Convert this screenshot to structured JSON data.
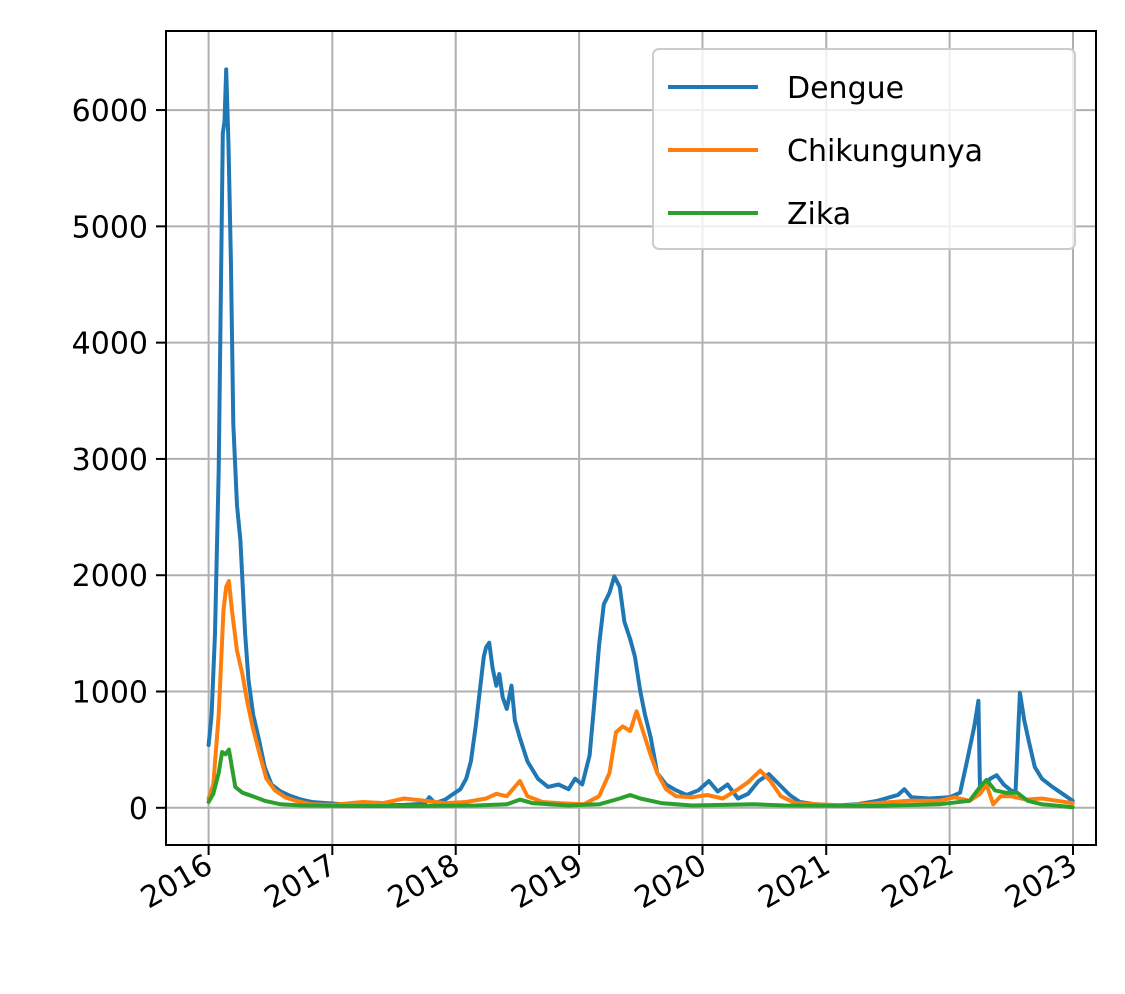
{
  "chart_data": {
    "type": "line",
    "title": "",
    "xlabel": "",
    "ylabel": "",
    "x_ticks": [
      "2016",
      "2017",
      "2018",
      "2019",
      "2020",
      "2021",
      "2022",
      "2023"
    ],
    "y_ticks": [
      0,
      1000,
      2000,
      3000,
      4000,
      5000,
      6000
    ],
    "xlim": [
      "2015-08-28",
      "2023-03-10"
    ],
    "ylim": [
      -320,
      6680
    ],
    "grid": true,
    "legend_position": "top-right",
    "series": [
      {
        "name": "Dengue",
        "color": "#1f77b4",
        "points": [
          [
            "2016-01-01",
            540
          ],
          [
            "2016-01-10",
            800
          ],
          [
            "2016-01-20",
            1500
          ],
          [
            "2016-01-31",
            2900
          ],
          [
            "2016-02-07",
            4600
          ],
          [
            "2016-02-12",
            5800
          ],
          [
            "2016-02-17",
            5900
          ],
          [
            "2016-02-22",
            6350
          ],
          [
            "2016-02-29",
            5700
          ],
          [
            "2016-03-07",
            4700
          ],
          [
            "2016-03-14",
            3300
          ],
          [
            "2016-03-25",
            2600
          ],
          [
            "2016-04-04",
            2300
          ],
          [
            "2016-04-18",
            1500
          ],
          [
            "2016-04-28",
            1100
          ],
          [
            "2016-05-12",
            800
          ],
          [
            "2016-05-28",
            600
          ],
          [
            "2016-06-15",
            350
          ],
          [
            "2016-07-05",
            200
          ],
          [
            "2016-08-01",
            140
          ],
          [
            "2016-09-01",
            100
          ],
          [
            "2016-10-01",
            70
          ],
          [
            "2016-11-01",
            50
          ],
          [
            "2016-12-15",
            40
          ],
          [
            "2017-02-01",
            30
          ],
          [
            "2017-05-01",
            20
          ],
          [
            "2017-08-01",
            25
          ],
          [
            "2017-10-01",
            35
          ],
          [
            "2017-10-15",
            90
          ],
          [
            "2017-11-01",
            40
          ],
          [
            "2017-12-01",
            70
          ],
          [
            "2017-12-20",
            110
          ],
          [
            "2018-01-15",
            160
          ],
          [
            "2018-02-01",
            250
          ],
          [
            "2018-02-15",
            400
          ],
          [
            "2018-03-01",
            700
          ],
          [
            "2018-03-15",
            1050
          ],
          [
            "2018-03-25",
            1300
          ],
          [
            "2018-04-01",
            1380
          ],
          [
            "2018-04-10",
            1420
          ],
          [
            "2018-04-20",
            1200
          ],
          [
            "2018-05-01",
            1050
          ],
          [
            "2018-05-10",
            1150
          ],
          [
            "2018-05-20",
            950
          ],
          [
            "2018-06-01",
            850
          ],
          [
            "2018-06-15",
            1050
          ],
          [
            "2018-06-25",
            750
          ],
          [
            "2018-07-10",
            600
          ],
          [
            "2018-08-01",
            400
          ],
          [
            "2018-09-01",
            250
          ],
          [
            "2018-10-01",
            180
          ],
          [
            "2018-11-01",
            200
          ],
          [
            "2018-12-01",
            160
          ],
          [
            "2018-12-20",
            250
          ],
          [
            "2019-01-10",
            200
          ],
          [
            "2019-02-01",
            450
          ],
          [
            "2019-02-15",
            900
          ],
          [
            "2019-03-01",
            1400
          ],
          [
            "2019-03-15",
            1750
          ],
          [
            "2019-04-01",
            1850
          ],
          [
            "2019-04-15",
            1990
          ],
          [
            "2019-05-01",
            1900
          ],
          [
            "2019-05-15",
            1600
          ],
          [
            "2019-06-01",
            1450
          ],
          [
            "2019-06-15",
            1300
          ],
          [
            "2019-07-01",
            1000
          ],
          [
            "2019-07-15",
            800
          ],
          [
            "2019-08-01",
            600
          ],
          [
            "2019-08-20",
            300
          ],
          [
            "2019-09-15",
            200
          ],
          [
            "2019-10-15",
            150
          ],
          [
            "2019-11-15",
            110
          ],
          [
            "2019-12-20",
            150
          ],
          [
            "2020-01-20",
            230
          ],
          [
            "2020-02-15",
            140
          ],
          [
            "2020-03-15",
            200
          ],
          [
            "2020-04-15",
            80
          ],
          [
            "2020-05-15",
            120
          ],
          [
            "2020-06-15",
            230
          ],
          [
            "2020-07-15",
            290
          ],
          [
            "2020-08-15",
            200
          ],
          [
            "2020-09-15",
            110
          ],
          [
            "2020-10-15",
            50
          ],
          [
            "2020-12-01",
            30
          ],
          [
            "2021-02-01",
            20
          ],
          [
            "2021-04-01",
            30
          ],
          [
            "2021-06-01",
            60
          ],
          [
            "2021-08-01",
            110
          ],
          [
            "2021-08-20",
            160
          ],
          [
            "2021-09-10",
            90
          ],
          [
            "2021-11-01",
            80
          ],
          [
            "2022-01-01",
            90
          ],
          [
            "2022-02-01",
            130
          ],
          [
            "2022-02-20",
            380
          ],
          [
            "2022-03-15",
            700
          ],
          [
            "2022-03-27",
            920
          ],
          [
            "2022-04-01",
            160
          ],
          [
            "2022-04-15",
            200
          ],
          [
            "2022-05-01",
            250
          ],
          [
            "2022-05-20",
            280
          ],
          [
            "2022-06-10",
            200
          ],
          [
            "2022-07-01",
            150
          ],
          [
            "2022-07-15",
            130
          ],
          [
            "2022-07-28",
            990
          ],
          [
            "2022-08-10",
            750
          ],
          [
            "2022-08-25",
            550
          ],
          [
            "2022-09-10",
            350
          ],
          [
            "2022-10-01",
            250
          ],
          [
            "2022-11-01",
            180
          ],
          [
            "2022-12-01",
            120
          ],
          [
            "2022-12-31",
            60
          ]
        ]
      },
      {
        "name": "Chikungunya",
        "color": "#ff7f0e",
        "points": [
          [
            "2016-01-01",
            80
          ],
          [
            "2016-01-15",
            200
          ],
          [
            "2016-01-31",
            800
          ],
          [
            "2016-02-14",
            1700
          ],
          [
            "2016-02-22",
            1900
          ],
          [
            "2016-03-01",
            1950
          ],
          [
            "2016-03-10",
            1700
          ],
          [
            "2016-03-25",
            1350
          ],
          [
            "2016-04-10",
            1150
          ],
          [
            "2016-04-25",
            900
          ],
          [
            "2016-05-10",
            700
          ],
          [
            "2016-06-01",
            450
          ],
          [
            "2016-06-20",
            250
          ],
          [
            "2016-07-15",
            150
          ],
          [
            "2016-08-15",
            90
          ],
          [
            "2016-09-15",
            60
          ],
          [
            "2016-11-01",
            30
          ],
          [
            "2017-01-01",
            25
          ],
          [
            "2017-04-01",
            50
          ],
          [
            "2017-06-01",
            40
          ],
          [
            "2017-08-01",
            80
          ],
          [
            "2017-10-01",
            60
          ],
          [
            "2017-12-01",
            40
          ],
          [
            "2018-02-01",
            50
          ],
          [
            "2018-04-01",
            80
          ],
          [
            "2018-05-01",
            120
          ],
          [
            "2018-06-01",
            100
          ],
          [
            "2018-07-10",
            230
          ],
          [
            "2018-08-01",
            100
          ],
          [
            "2018-09-15",
            50
          ],
          [
            "2018-11-01",
            40
          ],
          [
            "2019-01-15",
            30
          ],
          [
            "2019-03-01",
            100
          ],
          [
            "2019-04-01",
            300
          ],
          [
            "2019-04-20",
            650
          ],
          [
            "2019-05-10",
            700
          ],
          [
            "2019-06-01",
            660
          ],
          [
            "2019-06-20",
            830
          ],
          [
            "2019-07-10",
            650
          ],
          [
            "2019-08-01",
            450
          ],
          [
            "2019-08-20",
            300
          ],
          [
            "2019-09-15",
            160
          ],
          [
            "2019-10-15",
            100
          ],
          [
            "2019-12-01",
            90
          ],
          [
            "2020-01-15",
            110
          ],
          [
            "2020-03-01",
            80
          ],
          [
            "2020-04-15",
            160
          ],
          [
            "2020-05-15",
            220
          ],
          [
            "2020-06-20",
            320
          ],
          [
            "2020-07-20",
            230
          ],
          [
            "2020-08-20",
            100
          ],
          [
            "2020-10-01",
            40
          ],
          [
            "2020-12-01",
            30
          ],
          [
            "2021-03-01",
            20
          ],
          [
            "2021-06-01",
            40
          ],
          [
            "2021-09-01",
            60
          ],
          [
            "2021-12-01",
            60
          ],
          [
            "2022-01-15",
            90
          ],
          [
            "2022-03-01",
            60
          ],
          [
            "2022-04-01",
            120
          ],
          [
            "2022-04-20",
            200
          ],
          [
            "2022-05-10",
            30
          ],
          [
            "2022-06-01",
            100
          ],
          [
            "2022-07-01",
            100
          ],
          [
            "2022-08-15",
            70
          ],
          [
            "2022-10-01",
            80
          ],
          [
            "2022-11-15",
            60
          ],
          [
            "2022-12-31",
            40
          ]
        ]
      },
      {
        "name": "Zika",
        "color": "#2ca02c",
        "points": [
          [
            "2016-01-01",
            50
          ],
          [
            "2016-01-15",
            120
          ],
          [
            "2016-01-31",
            300
          ],
          [
            "2016-02-10",
            480
          ],
          [
            "2016-02-20",
            460
          ],
          [
            "2016-03-01",
            500
          ],
          [
            "2016-03-10",
            350
          ],
          [
            "2016-03-20",
            180
          ],
          [
            "2016-04-10",
            130
          ],
          [
            "2016-05-10",
            100
          ],
          [
            "2016-06-15",
            60
          ],
          [
            "2016-08-01",
            30
          ],
          [
            "2016-10-01",
            20
          ],
          [
            "2017-03-01",
            15
          ],
          [
            "2017-09-01",
            15
          ],
          [
            "2018-03-01",
            20
          ],
          [
            "2018-06-01",
            30
          ],
          [
            "2018-07-10",
            70
          ],
          [
            "2018-08-15",
            40
          ],
          [
            "2018-12-01",
            20
          ],
          [
            "2019-03-01",
            30
          ],
          [
            "2019-05-01",
            80
          ],
          [
            "2019-06-01",
            110
          ],
          [
            "2019-07-01",
            80
          ],
          [
            "2019-09-01",
            40
          ],
          [
            "2019-12-01",
            20
          ],
          [
            "2020-06-01",
            30
          ],
          [
            "2020-09-01",
            20
          ],
          [
            "2021-06-01",
            15
          ],
          [
            "2021-12-01",
            30
          ],
          [
            "2022-03-01",
            60
          ],
          [
            "2022-04-01",
            180
          ],
          [
            "2022-04-20",
            240
          ],
          [
            "2022-05-15",
            150
          ],
          [
            "2022-06-15",
            130
          ],
          [
            "2022-07-20",
            130
          ],
          [
            "2022-08-20",
            60
          ],
          [
            "2022-10-01",
            30
          ],
          [
            "2022-12-31",
            5
          ]
        ]
      }
    ]
  }
}
